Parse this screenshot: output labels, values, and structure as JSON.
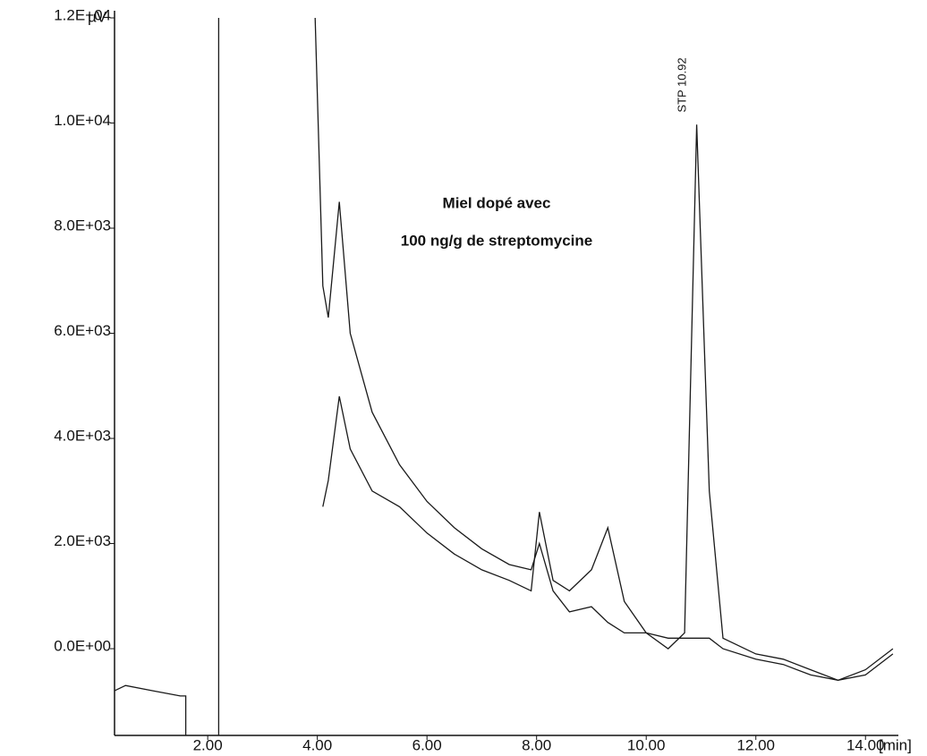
{
  "chart_data": {
    "type": "line",
    "annotations": [
      "Miel dopé avec",
      "100 ng/g de streptomycine"
    ],
    "peak_label": "STP 10.92",
    "y_label": "µV",
    "x_label": "[min]",
    "xlim": [
      0.3,
      14.6
    ],
    "ylim": [
      -1650,
      12000
    ],
    "xticks": [
      {
        "value": 2,
        "label": "2.00"
      },
      {
        "value": 4,
        "label": "4.00"
      },
      {
        "value": 6,
        "label": "6.00"
      },
      {
        "value": 8,
        "label": "8.00"
      },
      {
        "value": 10,
        "label": "10.00"
      },
      {
        "value": 12,
        "label": "12.00"
      },
      {
        "value": 14,
        "label": "14.00"
      }
    ],
    "yticks": [
      {
        "value": 0,
        "label": "0.0E+00"
      },
      {
        "value": 2000,
        "label": "2.0E+03"
      },
      {
        "value": 4000,
        "label": "4.0E+03"
      },
      {
        "value": 6000,
        "label": "6.0E+03"
      },
      {
        "value": 8000,
        "label": "8.0E+03"
      },
      {
        "value": 10000,
        "label": "1.0E+04"
      },
      {
        "value": 12000,
        "label": "1.2E+04"
      }
    ],
    "series": [
      {
        "color": "#1a1a1a",
        "x": [
          3.96,
          4.1,
          4.2,
          4.4,
          4.6,
          5.0,
          5.5,
          6.0,
          6.5,
          7.0,
          7.5,
          7.9,
          8.05,
          8.3,
          8.6,
          9.0,
          9.3,
          9.6,
          10.0,
          10.4,
          10.7,
          10.92,
          11.15,
          11.4,
          12.0,
          12.5,
          13.0,
          13.5,
          14.0,
          14.5
        ],
        "values": [
          12000,
          6900,
          6300,
          8500,
          6000,
          4500,
          3500,
          2800,
          2300,
          1900,
          1600,
          1500,
          2000,
          1100,
          700,
          800,
          500,
          300,
          300,
          200,
          200,
          200,
          200,
          0,
          -200,
          -300,
          -500,
          -600,
          -400,
          0
        ]
      },
      {
        "color": "#1a1a1a",
        "x": [
          4.1,
          4.2,
          4.4,
          4.6,
          5.0,
          5.5,
          6.0,
          6.5,
          7.0,
          7.5,
          7.9,
          8.05,
          8.3,
          8.6,
          9.0,
          9.3,
          9.6,
          10.0,
          10.4,
          10.7,
          10.92,
          11.15,
          11.4,
          12.0,
          12.5,
          13.0,
          13.5,
          14.0,
          14.5
        ],
        "values": [
          2700,
          3200,
          4800,
          3800,
          3000,
          2700,
          2200,
          1800,
          1500,
          1300,
          1100,
          2600,
          1300,
          1100,
          1500,
          2300,
          900,
          300,
          0,
          300,
          9970,
          3000,
          200,
          -100,
          -200,
          -400,
          -600,
          -500,
          -100
        ]
      },
      {
        "color": "#1a1a1a",
        "x": [
          0.3,
          0.5,
          1.0,
          1.5,
          1.6,
          1.6
        ],
        "values": [
          -800,
          -700,
          -800,
          -900,
          -900,
          -1650
        ]
      },
      {
        "color": "#1a1a1a",
        "x": [
          2.2,
          2.2
        ],
        "values": [
          -1650,
          12000
        ]
      }
    ]
  }
}
